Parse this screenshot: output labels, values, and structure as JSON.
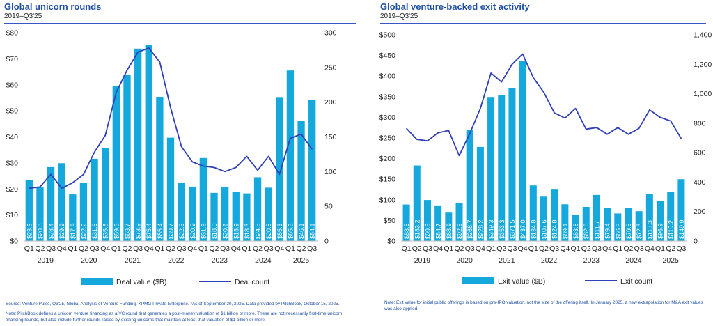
{
  "left": {
    "title": "Global unicorn rounds",
    "subtitle": "2019–Q3'25",
    "source": "Source: Venture Pulse, Q3'25, Global Analysis of Venture Funding, KPMG Private Enterprise. *As of September 30, 2025. Data provided by PitchBook, October 15, 2025.",
    "note": "Note: PitchBook defines a unicorn venture financing as a VC round that generates a post-money valuation of $1 billion or more. These are not necessarily first-time unicorn financing rounds, but also include further rounds raised by existing unicorns that maintain at least that valuation of $1 billion or more."
  },
  "right": {
    "title": "Global venture-backed exit activity",
    "subtitle": "2019–Q3'25",
    "note": "Note: Exit value for initial public offerings is based on pre-IPO valuation, not the size of the offering itself. In January 2025, a new extrapolation for M&A exit values was also applied."
  },
  "chart_data": [
    {
      "type": "bar",
      "categories": [
        "Q1",
        "Q2",
        "Q3",
        "Q4",
        "Q1",
        "Q2",
        "Q3",
        "Q4",
        "Q1",
        "Q2",
        "Q3",
        "Q4",
        "Q1",
        "Q2",
        "Q3",
        "Q4",
        "Q1",
        "Q2",
        "Q3",
        "Q4",
        "Q1",
        "Q2",
        "Q3",
        "Q4",
        "Q1",
        "Q2",
        "Q3"
      ],
      "years": [
        "2019",
        "2020",
        "2021",
        "2022",
        "2023",
        "2024",
        "2025"
      ],
      "series": [
        {
          "name": "Deal value ($B)",
          "type": "bar",
          "color": "#14a8dc",
          "values": [
            23.3,
            20.8,
            28.4,
            29.9,
            17.9,
            22.2,
            31.6,
            35.8,
            59.5,
            63.7,
            73.9,
            75.4,
            55.4,
            39.7,
            22.3,
            20.9,
            31.9,
            18.5,
            20.6,
            18.9,
            18.3,
            24.5,
            20.5,
            55.3,
            65.5,
            46.1,
            54.1
          ],
          "labels": [
            "$23.3",
            "$20.8",
            "$28.4",
            "$29.9",
            "$17.9",
            "$22.2",
            "$31.6",
            "$35.8",
            "$59.5",
            "$63.7",
            "$73.9",
            "$75.4",
            "$55.4",
            "$39.7",
            "$22.3",
            "$20.9",
            "$31.9",
            "$18.5",
            "$20.6",
            "$18.9",
            "$18.3",
            "$24.5",
            "$20.5",
            "$55.3",
            "$65.5",
            "$46.1",
            "$54.1"
          ]
        },
        {
          "name": "Deal count",
          "type": "line",
          "color": "#2e3fb8",
          "values": [
            76,
            78,
            96,
            76,
            84,
            96,
            128,
            152,
            214,
            246,
            272,
            278,
            258,
            192,
            136,
            114,
            108,
            106,
            100,
            106,
            122,
            102,
            122,
            96,
            148,
            154,
            132
          ]
        }
      ],
      "y_left": {
        "min": 0,
        "max": 80,
        "step": 10,
        "ticks": [
          "$0",
          "$10",
          "$20",
          "$30",
          "$40",
          "$50",
          "$60",
          "$70",
          "$80"
        ]
      },
      "y_right": {
        "min": 0,
        "max": 300,
        "step": 50,
        "ticks": [
          "0",
          "50",
          "100",
          "150",
          "200",
          "250",
          "300"
        ]
      },
      "legend_placement": "bottom"
    },
    {
      "type": "bar",
      "categories": [
        "Q1",
        "Q2",
        "Q3",
        "Q4",
        "Q1",
        "Q2",
        "Q3",
        "Q4",
        "Q1",
        "Q2",
        "Q3",
        "Q4",
        "Q1",
        "Q2",
        "Q3",
        "Q4",
        "Q1",
        "Q2",
        "Q3",
        "Q4",
        "Q1",
        "Q2",
        "Q3",
        "Q4",
        "Q1",
        "Q2",
        "Q3"
      ],
      "years": [
        "2019",
        "2020",
        "2021",
        "2022",
        "2023",
        "2024",
        "2025"
      ],
      "series": [
        {
          "name": "Exit value ($B)",
          "type": "bar",
          "color": "#14a8dc",
          "values": [
            88.5,
            183.2,
            99.5,
            84.7,
            68.9,
            92.6,
            268.7,
            228.2,
            349.3,
            353.3,
            371.5,
            437.0,
            134.8,
            107.6,
            124.8,
            89.1,
            63.8,
            82.8,
            111.7,
            79.4,
            66.9,
            79.6,
            72.3,
            113.3,
            96.9,
            119.2,
            149.9
          ],
          "labels": [
            "$88.5",
            "$183.2",
            "$99.5",
            "$84.7",
            "$68.9",
            "$92.6",
            "$268.7",
            "$228.2",
            "$349.3",
            "$353.3",
            "$371.5",
            "$437.0",
            "$134.8",
            "$107.6",
            "$124.8",
            "$89.1",
            "$63.8",
            "$82.8",
            "$111.7",
            "$79.4",
            "$66.9",
            "$79.6",
            "$72.3",
            "$113.3",
            "$96.9",
            "$119.2",
            "$149.9"
          ]
        },
        {
          "name": "Exit count",
          "type": "line",
          "color": "#2e3fb8",
          "values": [
            765,
            690,
            680,
            735,
            750,
            580,
            730,
            900,
            1140,
            1080,
            1200,
            1270,
            1110,
            1010,
            870,
            835,
            900,
            760,
            770,
            725,
            770,
            725,
            765,
            890,
            840,
            815,
            695
          ]
        }
      ],
      "y_left": {
        "min": 0,
        "max": 500,
        "step": 50,
        "ticks": [
          "$0",
          "$50",
          "$100",
          "$150",
          "$200",
          "$250",
          "$300",
          "$350",
          "$400",
          "$450",
          "$500"
        ]
      },
      "y_right": {
        "min": 0,
        "max": 1400,
        "step": 200,
        "ticks": [
          "0",
          "200",
          "400",
          "600",
          "800",
          "1,000",
          "1,200",
          "1,400"
        ]
      },
      "legend_placement": "bottom"
    }
  ]
}
